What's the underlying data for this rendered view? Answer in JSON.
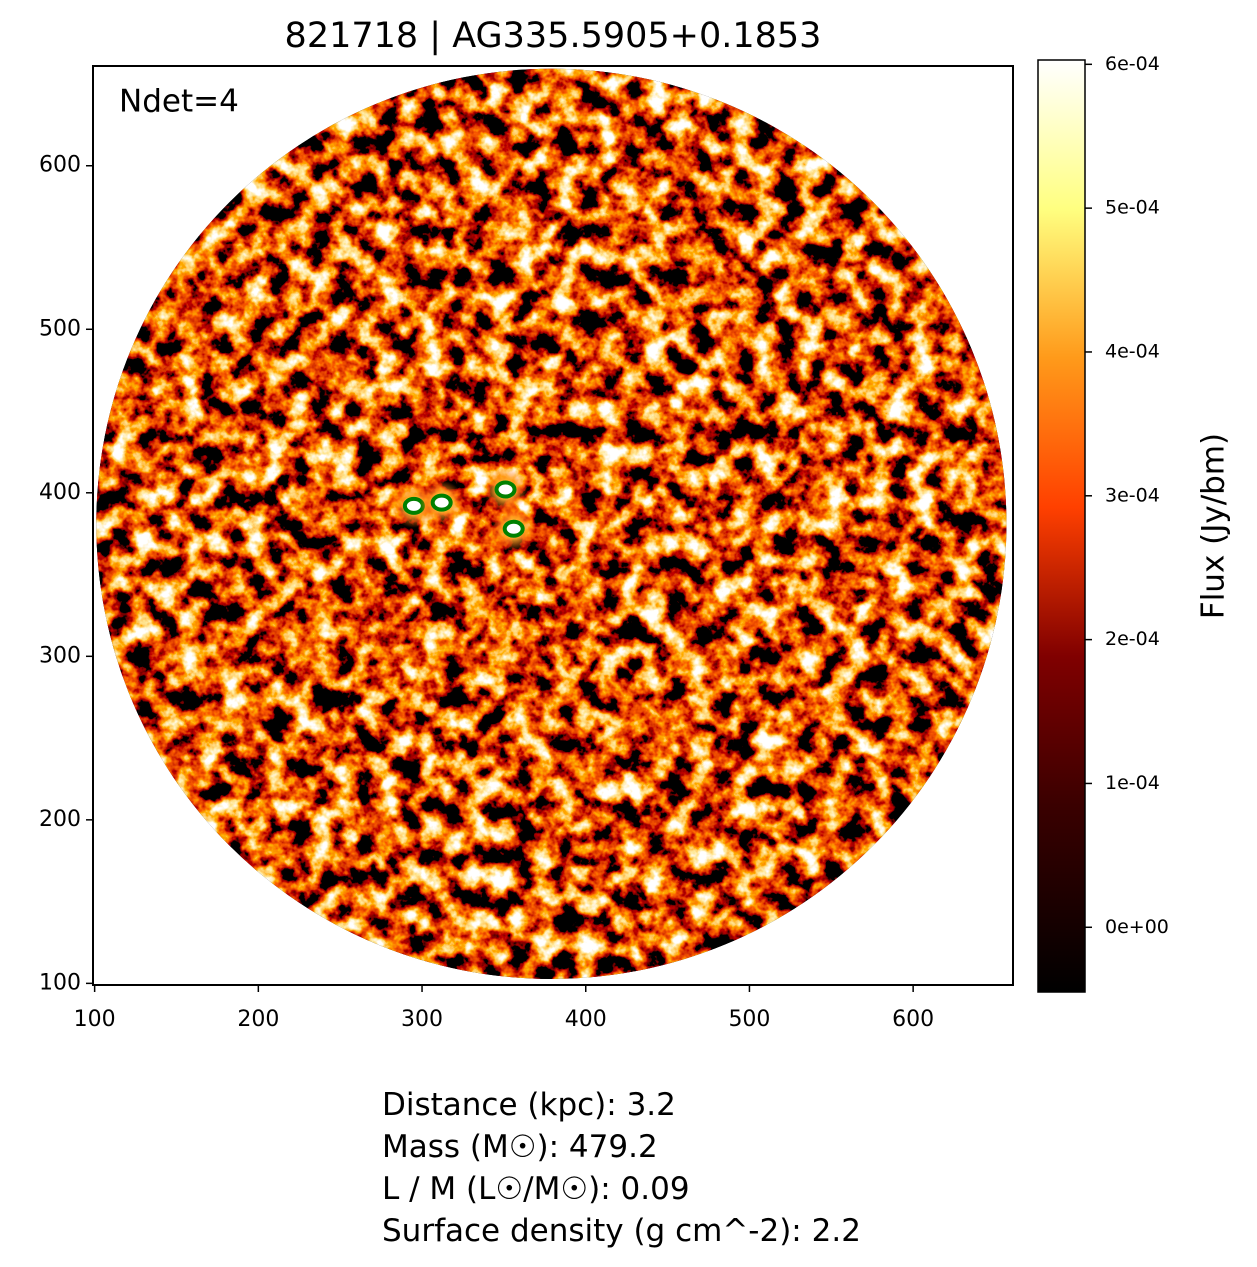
{
  "chart_data": {
    "type": "image",
    "title": "821718 | AG335.5905+0.1853",
    "annotation": "Ndet=4",
    "xlim": [
      99,
      661
    ],
    "ylim": [
      99,
      661
    ],
    "xticks": [
      100,
      200,
      300,
      400,
      500,
      600
    ],
    "yticks": [
      100,
      200,
      300,
      400,
      500,
      600
    ],
    "field": {
      "x": 379,
      "y": 381,
      "radius": 278
    },
    "detections": {
      "x": [
        295,
        312,
        351,
        356
      ],
      "y": [
        392,
        394,
        402,
        378
      ]
    },
    "detection_color": "#008000",
    "colorbar_label": "Flux (Jy/bm)",
    "clim": [
      -4.5e-05,
      0.000603
    ],
    "cticks": [
      {
        "value": 0,
        "label": "0e+00"
      },
      {
        "value": 0.0001,
        "label": "1e-04"
      },
      {
        "value": 0.0002,
        "label": "2e-04"
      },
      {
        "value": 0.0003,
        "label": "3e-04"
      },
      {
        "value": 0.0004,
        "label": "4e-04"
      },
      {
        "value": 0.0005,
        "label": "5e-04"
      },
      {
        "value": 0.0006,
        "label": "6e-04"
      }
    ],
    "footer_lines": [
      "Distance (kpc): 3.2",
      "Mass (M☉): 479.2",
      "L / M (L☉/M☉): 0.09",
      "Surface density (g cm^-2): 2.2"
    ]
  }
}
